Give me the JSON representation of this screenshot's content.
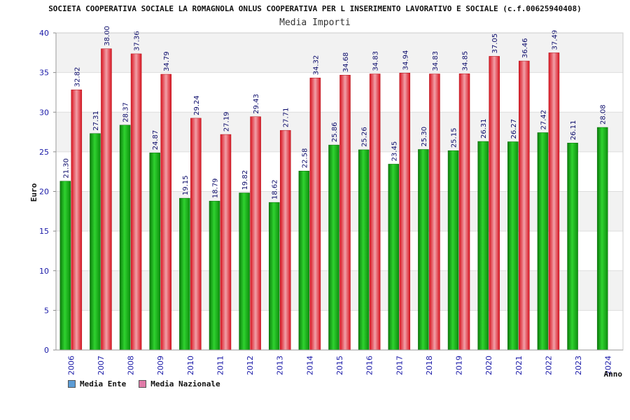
{
  "title": "SOCIETA COOPERATIVA SOCIALE LA ROMAGNOLA ONLUS COOPERATIVA PER L INSERIMENTO LAVORATIVO E SOCIALE (c.f.00625940408)",
  "subtitle": "Media Importi",
  "colors": {
    "ente": "#16b316",
    "nazionale": "#e8202a",
    "legend_ente": "#5b9bd5",
    "legend_nazionale": "#e07ba8",
    "axis_text": "#1a1aa8",
    "band": "#f2f2f2"
  },
  "chart_data": {
    "type": "bar",
    "title": "SOCIETA COOPERATIVA SOCIALE LA ROMAGNOLA ONLUS COOPERATIVA PER L INSERIMENTO LAVORATIVO E SOCIALE (c.f.00625940408)",
    "subtitle": "Media Importi",
    "xlabel": "Anno",
    "ylabel": "Euro",
    "ylim": [
      0,
      40
    ],
    "yticks": [
      0,
      5,
      10,
      15,
      20,
      25,
      30,
      35,
      40
    ],
    "categories": [
      "2006",
      "2007",
      "2008",
      "2009",
      "2010",
      "2011",
      "2012",
      "2013",
      "2014",
      "2015",
      "2016",
      "2017",
      "2018",
      "2019",
      "2020",
      "2021",
      "2022",
      "2023",
      "2024"
    ],
    "series": [
      {
        "name": "Media Ente",
        "values": [
          21.3,
          27.31,
          28.37,
          24.87,
          19.15,
          18.79,
          19.82,
          18.62,
          22.58,
          25.86,
          25.26,
          23.45,
          25.3,
          25.15,
          26.31,
          26.27,
          27.42,
          26.11,
          28.08
        ],
        "labels": [
          "21.30",
          "27.31",
          "28.37",
          "24.87",
          "19.15",
          "18.79",
          "19.82",
          "18.62",
          "22.58",
          "25.86",
          "25.26",
          "23.45",
          "25.30",
          "25.15",
          "26.31",
          "26.27",
          "27.42",
          "26.11",
          "28.08"
        ]
      },
      {
        "name": "Media Nazionale",
        "values": [
          32.82,
          38.0,
          37.36,
          34.79,
          29.24,
          27.19,
          29.43,
          27.71,
          34.32,
          34.68,
          34.83,
          34.94,
          34.83,
          34.85,
          37.05,
          36.46,
          37.49,
          null,
          null
        ],
        "labels": [
          "32.82",
          "38.00",
          "37.36",
          "34.79",
          "29.24",
          "27.19",
          "29.43",
          "27.71",
          "34.32",
          "34.68",
          "34.83",
          "34.94",
          "34.83",
          "34.85",
          "37.05",
          "36.46",
          "37.49",
          null,
          null
        ]
      }
    ],
    "grid": true,
    "legend_position": "bottom-left"
  }
}
